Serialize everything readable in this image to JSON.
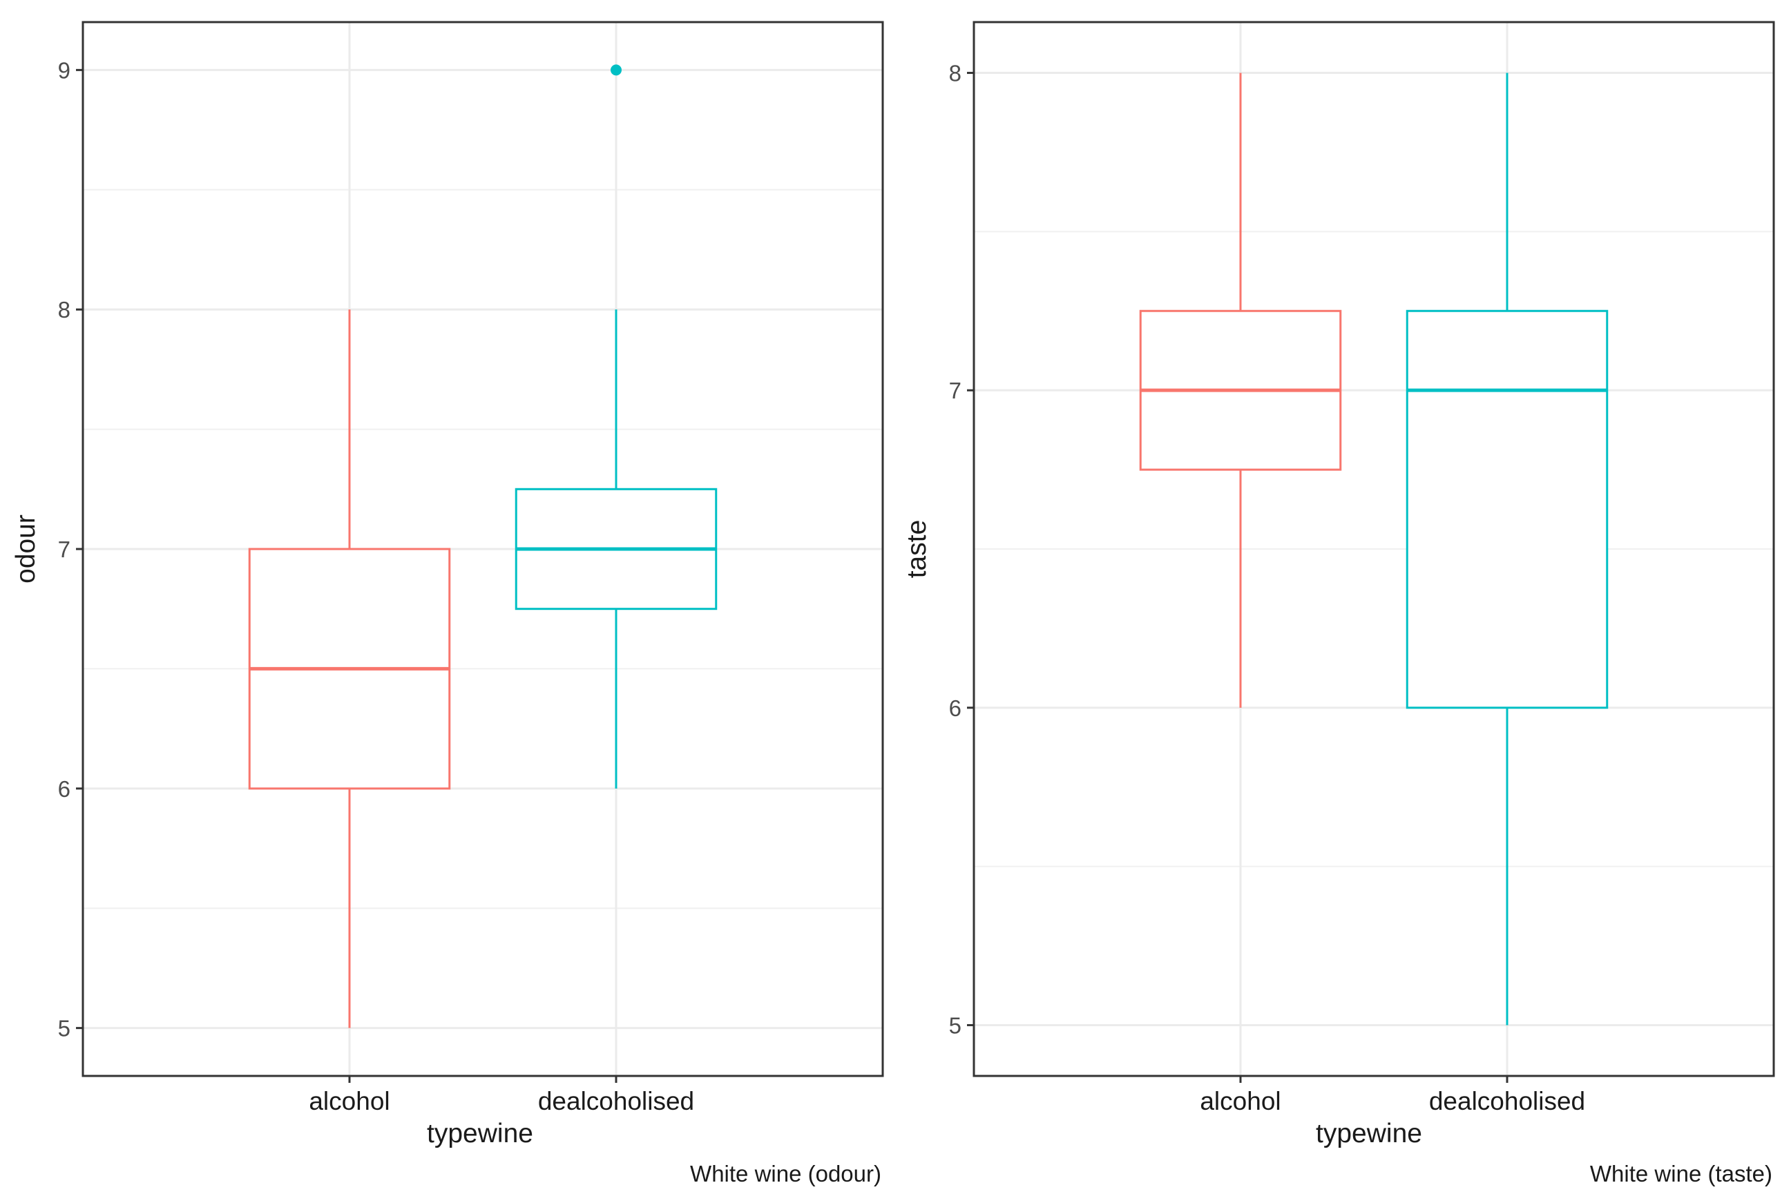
{
  "chart_data": [
    {
      "type": "boxplot",
      "title": "",
      "caption": "White wine (odour)",
      "xlabel": "typewine",
      "ylabel": "odour",
      "categories": [
        "alcohol",
        "dealcoholised"
      ],
      "y_ticks": [
        5,
        6,
        7,
        8,
        9
      ],
      "ylim": [
        4.8,
        9.2
      ],
      "grid": true,
      "boxes": [
        {
          "category": "alcohol",
          "color": "#F8766D",
          "whisker_low": 5,
          "q1": 6,
          "median": 6.5,
          "q3": 7,
          "whisker_high": 8,
          "outliers": []
        },
        {
          "category": "dealcoholised",
          "color": "#00BFC4",
          "whisker_low": 6,
          "q1": 6.75,
          "median": 7,
          "q3": 7.25,
          "whisker_high": 8,
          "outliers": [
            9
          ]
        }
      ]
    },
    {
      "type": "boxplot",
      "title": "",
      "caption": "White wine (taste)",
      "xlabel": "typewine",
      "ylabel": "taste",
      "categories": [
        "alcohol",
        "dealcoholised"
      ],
      "y_ticks": [
        5,
        6,
        7,
        8
      ],
      "ylim": [
        4.84,
        8.16
      ],
      "grid": true,
      "boxes": [
        {
          "category": "alcohol",
          "color": "#F8766D",
          "whisker_low": 6,
          "q1": 6.75,
          "median": 7,
          "q3": 7.25,
          "whisker_high": 8,
          "outliers": []
        },
        {
          "category": "dealcoholised",
          "color": "#00BFC4",
          "whisker_low": 5,
          "q1": 6,
          "median": 7,
          "q3": 7.25,
          "whisker_high": 8,
          "outliers": []
        }
      ]
    }
  ]
}
